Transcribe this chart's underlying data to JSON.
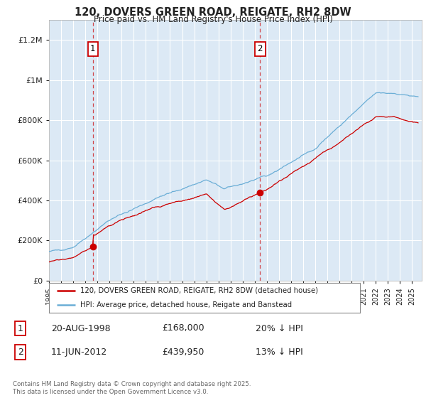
{
  "title": "120, DOVERS GREEN ROAD, REIGATE, RH2 8DW",
  "subtitle": "Price paid vs. HM Land Registry's House Price Index (HPI)",
  "background_color": "#ffffff",
  "plot_bg_color": "#dce9f5",
  "grid_color": "#ffffff",
  "hpi_color": "#6baed6",
  "price_color": "#cc0000",
  "sale_line_color": "#cc0000",
  "ylim": [
    0,
    1300000
  ],
  "yticks": [
    0,
    200000,
    400000,
    600000,
    800000,
    1000000,
    1200000
  ],
  "xlim_start": 1995.0,
  "xlim_end": 2025.8,
  "sale1_x": 1998.63,
  "sale1_y": 168000,
  "sale2_x": 2012.44,
  "sale2_y": 439950,
  "legend_line1": "120, DOVERS GREEN ROAD, REIGATE, RH2 8DW (detached house)",
  "legend_line2": "HPI: Average price, detached house, Reigate and Banstead",
  "footer": "Contains HM Land Registry data © Crown copyright and database right 2025.\nThis data is licensed under the Open Government Licence v3.0.",
  "table_row1": [
    "1",
    "20-AUG-1998",
    "£168,000",
    "20% ↓ HPI"
  ],
  "table_row2": [
    "2",
    "11-JUN-2012",
    "£439,950",
    "13% ↓ HPI"
  ]
}
